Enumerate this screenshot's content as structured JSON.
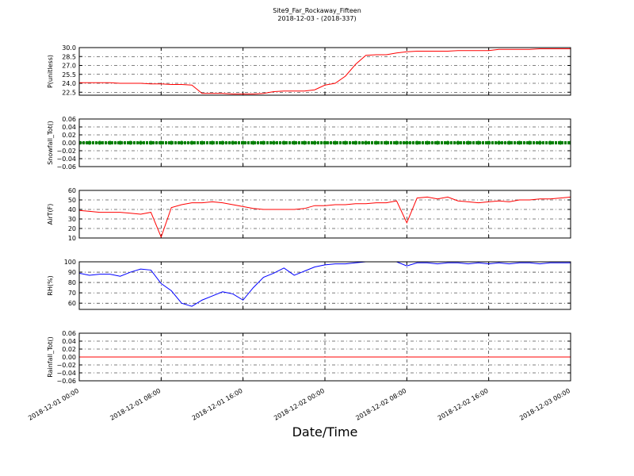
{
  "chart_data": {
    "type": "line",
    "title": "Site9_Far_Rockaway_Fifteen",
    "subtitle": "2018-12-03 - (2018-337)",
    "xlabel": "Date/Time",
    "x": [
      "2018-12-01 00:00",
      "2018-12-01 01:00",
      "2018-12-01 02:00",
      "2018-12-01 03:00",
      "2018-12-01 04:00",
      "2018-12-01 05:00",
      "2018-12-01 06:00",
      "2018-12-01 07:00",
      "2018-12-01 08:00",
      "2018-12-01 09:00",
      "2018-12-01 10:00",
      "2018-12-01 11:00",
      "2018-12-01 12:00",
      "2018-12-01 13:00",
      "2018-12-01 14:00",
      "2018-12-01 15:00",
      "2018-12-01 16:00",
      "2018-12-01 17:00",
      "2018-12-01 18:00",
      "2018-12-01 19:00",
      "2018-12-01 20:00",
      "2018-12-01 21:00",
      "2018-12-01 22:00",
      "2018-12-01 23:00",
      "2018-12-02 00:00",
      "2018-12-02 01:00",
      "2018-12-02 02:00",
      "2018-12-02 03:00",
      "2018-12-02 04:00",
      "2018-12-02 05:00",
      "2018-12-02 06:00",
      "2018-12-02 07:00",
      "2018-12-02 08:00",
      "2018-12-02 09:00",
      "2018-12-02 10:00",
      "2018-12-02 11:00",
      "2018-12-02 12:00",
      "2018-12-02 13:00",
      "2018-12-02 14:00",
      "2018-12-02 15:00",
      "2018-12-02 16:00",
      "2018-12-02 17:00",
      "2018-12-02 18:00",
      "2018-12-02 19:00",
      "2018-12-02 20:00",
      "2018-12-02 21:00",
      "2018-12-02 22:00",
      "2018-12-02 23:00",
      "2018-12-03 00:00"
    ],
    "xlim": [
      "2018-12-01 00:00",
      "2018-12-03 00:00"
    ],
    "xticks": [
      "2018-12-01 00:00",
      "2018-12-01 08:00",
      "2018-12-01 16:00",
      "2018-12-02 00:00",
      "2018-12-02 08:00",
      "2018-12-02 16:00",
      "2018-12-03 00:00"
    ],
    "grid": true,
    "panels": [
      {
        "ylabel": "P(unitless)",
        "ylim": [
          22.0,
          30.0
        ],
        "yticks": [
          22.5,
          {
            "value": 24.0,
            "label": "24.0"
          },
          25.5,
          {
            "value": 27.0,
            "label": "27.0"
          },
          28.5,
          {
            "value": 30.0,
            "label": "30.0"
          }
        ],
        "series": [
          {
            "color": "#ff0000",
            "style": "line",
            "values": [
              24.1,
              24.1,
              24.1,
              24.1,
              24.0,
              24.0,
              24.0,
              23.9,
              23.9,
              23.8,
              23.8,
              23.7,
              22.3,
              22.3,
              22.3,
              22.2,
              22.2,
              22.2,
              22.3,
              22.6,
              22.7,
              22.7,
              22.7,
              22.9,
              23.7,
              24.0,
              25.2,
              27.2,
              28.7,
              28.8,
              28.8,
              29.1,
              29.3,
              29.4,
              29.4,
              29.4,
              29.4,
              29.5,
              29.5,
              29.5,
              29.5,
              29.7,
              29.7,
              29.7,
              29.7,
              29.8,
              29.8,
              29.8,
              29.8
            ]
          }
        ]
      },
      {
        "ylabel": "Snowfall_Tot()",
        "ylim": [
          -0.06,
          0.06
        ],
        "yticks": [
          {
            "value": -0.06,
            "label": "−0.06"
          },
          {
            "value": -0.04,
            "label": "−0.04"
          },
          {
            "value": -0.02,
            "label": "−0.02"
          },
          {
            "value": 0,
            "label": "0.00"
          },
          0.02,
          0.04,
          0.06
        ],
        "series": [
          {
            "color": "#008000",
            "style": "dots",
            "values": [
              0,
              0,
              0,
              0,
              0,
              0,
              0,
              0,
              0,
              0,
              0,
              0,
              0,
              0,
              0,
              0,
              0,
              0,
              0,
              0,
              0,
              0,
              0,
              0,
              0,
              0,
              0,
              0,
              0,
              0,
              0,
              0,
              0,
              0,
              0,
              0,
              0,
              0,
              0,
              0,
              0,
              0,
              0,
              0,
              0,
              0,
              0,
              0,
              0
            ]
          }
        ]
      },
      {
        "ylabel": "AirT(F)",
        "ylim": [
          10,
          60
        ],
        "yticks": [
          10,
          20,
          30,
          40,
          50,
          60
        ],
        "series": [
          {
            "color": "#ff0000",
            "style": "line",
            "values": [
              39,
              38,
              37,
              37,
              37,
              36,
              35,
              37,
              11,
              42,
              45,
              47,
              47,
              48,
              47,
              45,
              43,
              41,
              40,
              40,
              40,
              40,
              41,
              44,
              44,
              45,
              45,
              46,
              46,
              47,
              47,
              49,
              26,
              52,
              53,
              51,
              53,
              49,
              48,
              47,
              48,
              49,
              48,
              50,
              50,
              51,
              51,
              52,
              53
            ]
          }
        ]
      },
      {
        "ylabel": "RH(%)",
        "ylim": [
          54,
          100
        ],
        "yticks": [
          60,
          70,
          80,
          90,
          100
        ],
        "series": [
          {
            "color": "#0000ff",
            "style": "line",
            "values": [
              89,
              87,
              88,
              88,
              86,
              90,
              93,
              92,
              79,
              72,
              60,
              57,
              63,
              67,
              71,
              69,
              63,
              75,
              85,
              89,
              94,
              87,
              91,
              95,
              97,
              98,
              98,
              99,
              100,
              100,
              100,
              100,
              96,
              99,
              99,
              98,
              99,
              99,
              98,
              99,
              98,
              99,
              98,
              99,
              99,
              98,
              99,
              99,
              99
            ]
          }
        ]
      },
      {
        "ylabel": "Rainfall_Tot()",
        "ylim": [
          -0.06,
          0.06
        ],
        "yticks": [
          {
            "value": -0.06,
            "label": "−0.06"
          },
          {
            "value": -0.04,
            "label": "−0.04"
          },
          {
            "value": -0.02,
            "label": "−0.02"
          },
          {
            "value": 0,
            "label": "0.00"
          },
          0.02,
          0.04,
          0.06
        ],
        "series": [
          {
            "color": "#ff0000",
            "style": "line",
            "values": [
              0,
              0,
              0,
              0,
              0,
              0,
              0,
              0,
              0,
              0,
              0,
              0,
              0,
              0,
              0,
              0,
              0,
              0,
              0,
              0,
              0,
              0,
              0,
              0,
              0,
              0,
              0,
              0,
              0,
              0,
              0,
              0,
              0,
              0,
              0,
              0,
              0,
              0,
              0,
              0,
              0,
              0,
              0,
              0,
              0,
              0,
              0,
              0,
              0
            ]
          }
        ]
      }
    ]
  }
}
